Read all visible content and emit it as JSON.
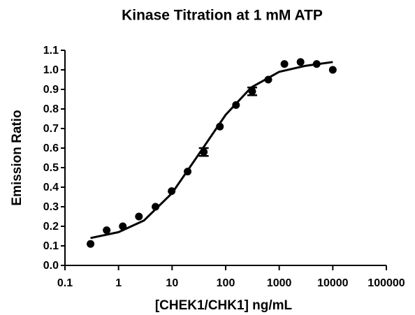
{
  "chart_data": {
    "type": "scatter",
    "title": "Kinase Titration at 1 mM ATP",
    "x_label": "[CHEK1/CHK1] ng/mL",
    "y_label": "Emission Ratio",
    "x_scale": "log",
    "xlim": [
      0.1,
      100000
    ],
    "xticks": [
      0.1,
      1,
      10,
      100,
      1000,
      10000,
      100000
    ],
    "ylim": [
      0,
      1.1
    ],
    "yticks": [
      {
        "value": 0,
        "label": "0.0"
      },
      0.1,
      0.2,
      0.3,
      0.4,
      0.5,
      0.6,
      0.7,
      0.8,
      0.9,
      {
        "value": 1,
        "label": "1.0"
      },
      1.1
    ],
    "series": [
      {
        "kind": "points",
        "color": "#000000",
        "x": [
          0.3,
          0.6,
          1.2,
          2.4,
          4.9,
          9.8,
          19.5,
          39,
          78,
          156,
          313,
          625,
          1250,
          2500,
          5000,
          10000
        ],
        "values": [
          0.11,
          0.18,
          0.2,
          0.25,
          0.3,
          0.38,
          0.48,
          0.58,
          0.71,
          0.82,
          0.89,
          0.95,
          1.03,
          1.04,
          1.03,
          1.0
        ],
        "errors": [
          null,
          null,
          null,
          null,
          null,
          null,
          null,
          0.02,
          null,
          null,
          0.02,
          null,
          null,
          null,
          null,
          null
        ]
      },
      {
        "kind": "fit",
        "color": "#000000",
        "x": [
          0.3,
          1,
          3,
          10,
          30,
          100,
          300,
          1000,
          3000,
          10000
        ],
        "values": [
          0.14,
          0.17,
          0.23,
          0.37,
          0.56,
          0.77,
          0.91,
          0.99,
          1.02,
          1.04
        ]
      }
    ]
  }
}
